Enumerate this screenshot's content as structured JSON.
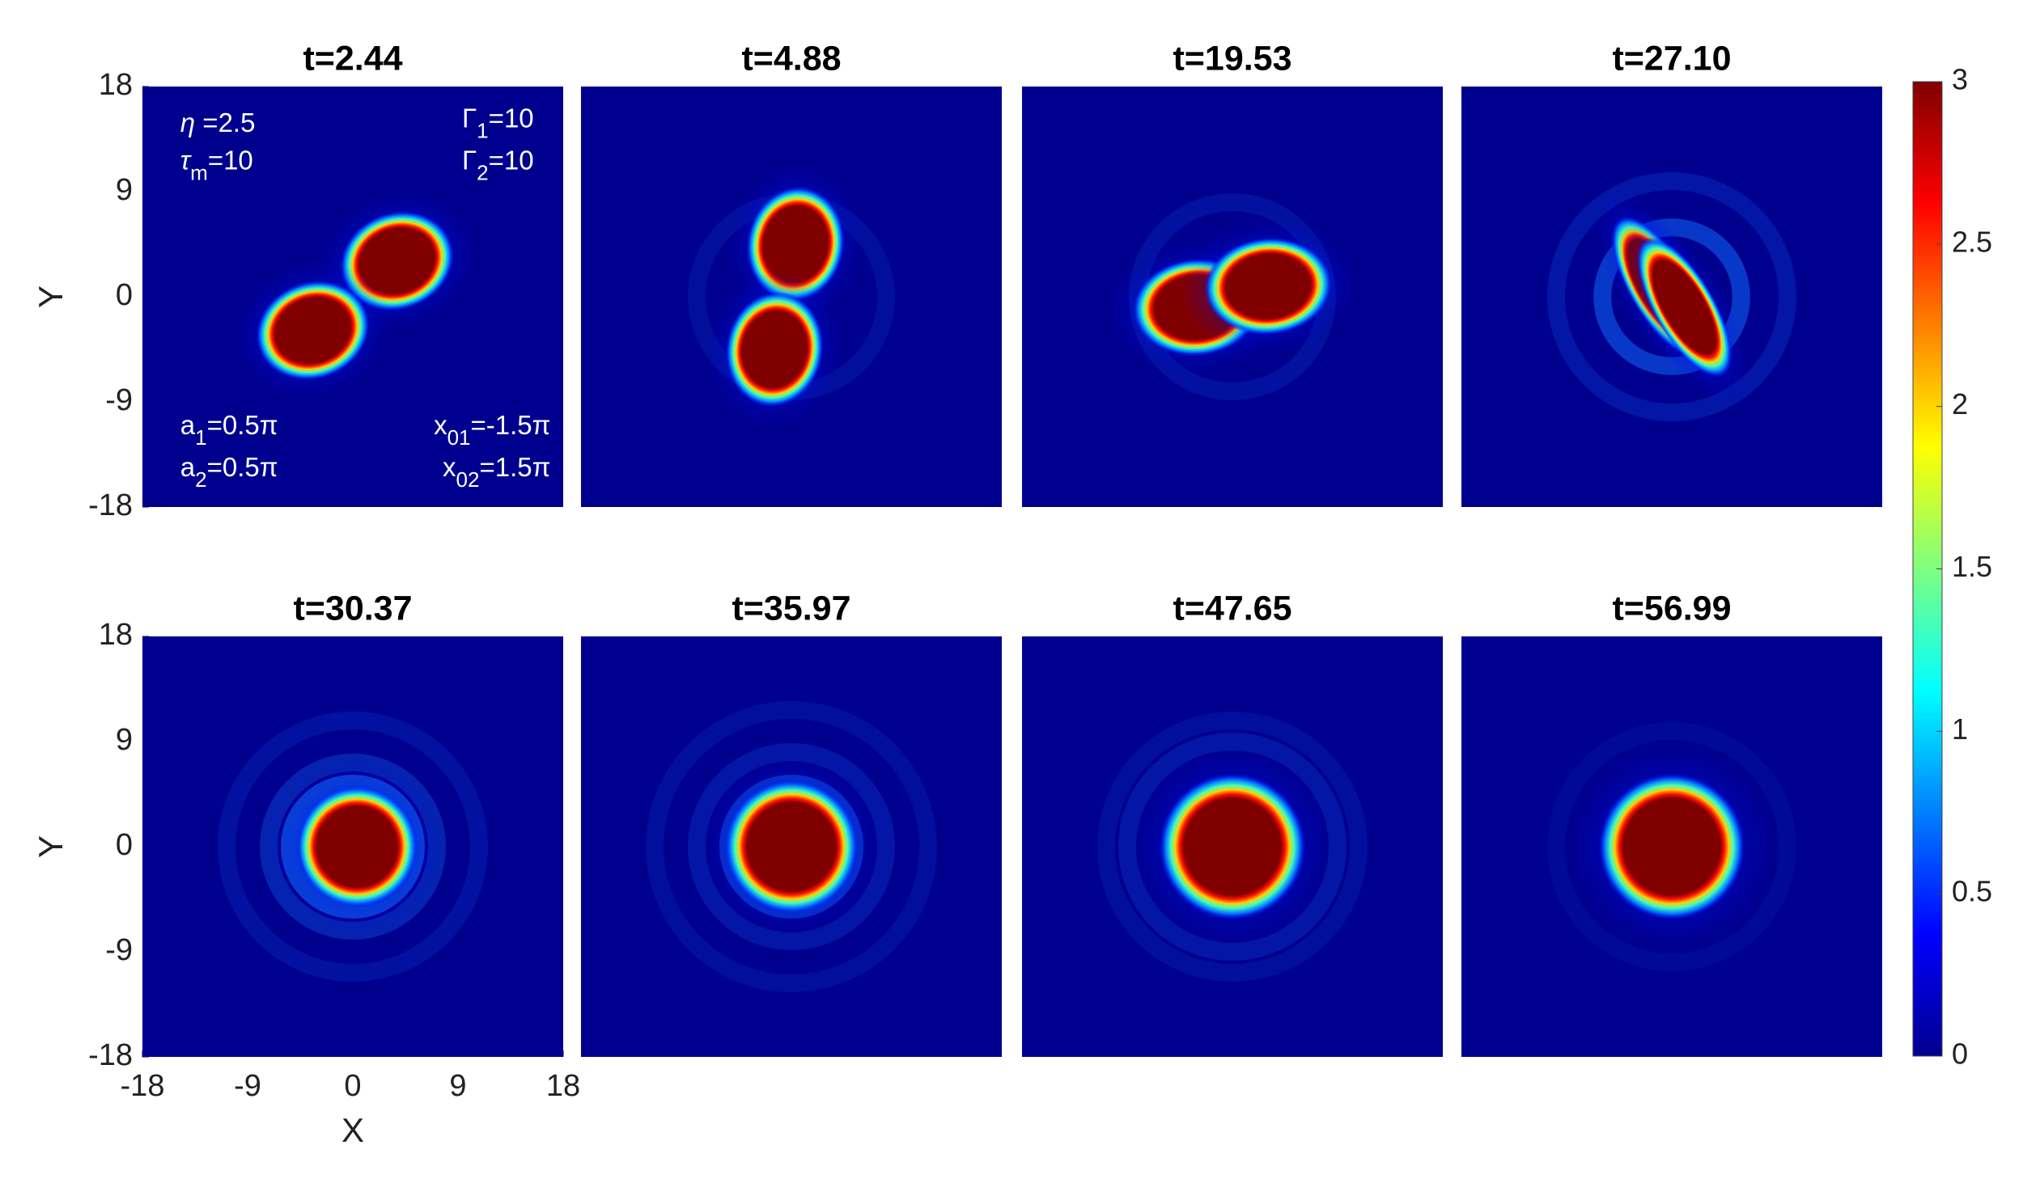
{
  "chart_data": [
    {
      "type": "heatmap",
      "title": "t=2.44",
      "xlim": [
        -18,
        18
      ],
      "ylim": [
        -18,
        18
      ],
      "yticks": [
        -18,
        -9,
        0,
        9,
        18
      ],
      "ylabel": "Y",
      "annotations": [
        {
          "symbol": "η",
          "text": " =2.5"
        },
        {
          "symbol": "τ",
          "sub": "m",
          "text": "=10"
        },
        {
          "symbol": "Γ",
          "sub": "1",
          "text": "=10"
        },
        {
          "symbol": "Γ",
          "sub": "2",
          "text": "=10"
        },
        {
          "symbol": "a",
          "sub": "1",
          "text": "=0.5π"
        },
        {
          "symbol": "a",
          "sub": "2",
          "text": "=0.5π"
        },
        {
          "symbol": "x",
          "sub": "01",
          "text": "=-1.5π"
        },
        {
          "symbol": "x",
          "sub": "02",
          "text": "=1.5π"
        }
      ]
    },
    {
      "type": "heatmap",
      "title": "t=4.88",
      "xlim": [
        -18,
        18
      ],
      "ylim": [
        -18,
        18
      ]
    },
    {
      "type": "heatmap",
      "title": "t=19.53",
      "xlim": [
        -18,
        18
      ],
      "ylim": [
        -18,
        18
      ]
    },
    {
      "type": "heatmap",
      "title": "t=27.10",
      "xlim": [
        -18,
        18
      ],
      "ylim": [
        -18,
        18
      ]
    },
    {
      "type": "heatmap",
      "title": "t=30.37",
      "xlim": [
        -18,
        18
      ],
      "ylim": [
        -18,
        18
      ],
      "xticks": [
        -18,
        -9,
        0,
        9,
        18
      ],
      "yticks": [
        -18,
        -9,
        0,
        9,
        18
      ],
      "xlabel": "X",
      "ylabel": "Y"
    },
    {
      "type": "heatmap",
      "title": "t=35.97",
      "xlim": [
        -18,
        18
      ],
      "ylim": [
        -18,
        18
      ]
    },
    {
      "type": "heatmap",
      "title": "t=47.65",
      "xlim": [
        -18,
        18
      ],
      "ylim": [
        -18,
        18
      ]
    },
    {
      "type": "heatmap",
      "title": "t=56.99",
      "xlim": [
        -18,
        18
      ],
      "ylim": [
        -18,
        18
      ]
    },
    {
      "type": "colorbar",
      "colormap": "jet",
      "clim": [
        0,
        3
      ],
      "ticks": [
        0,
        0.5,
        1,
        1.5,
        2,
        2.5,
        3
      ]
    }
  ]
}
